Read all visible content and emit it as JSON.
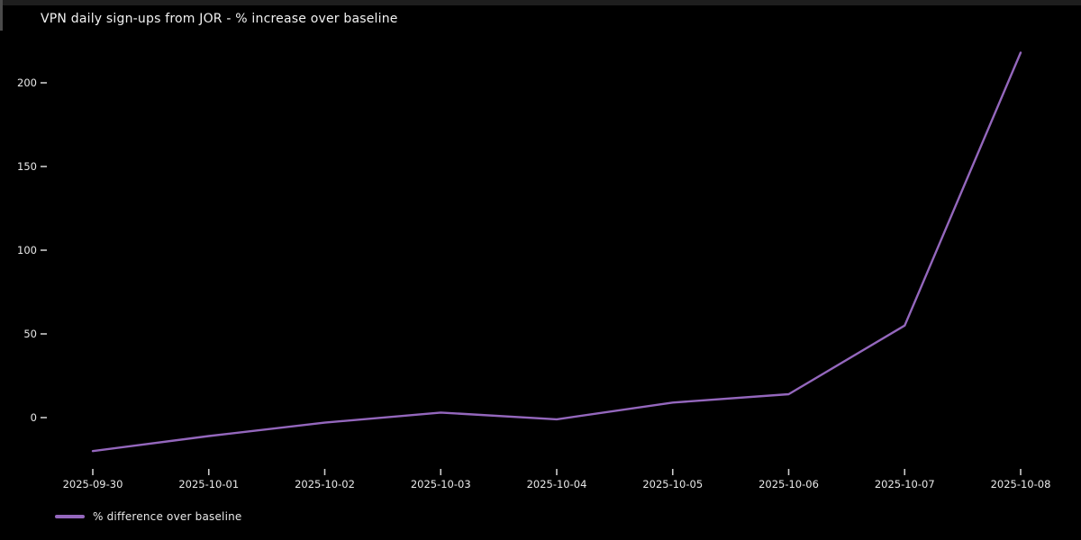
{
  "title": "VPN daily sign-ups from JOR - % increase over baseline",
  "legend": {
    "label": "% difference over baseline"
  },
  "colors": {
    "background": "#000000",
    "line": "#9467bd",
    "text": "#e9e9e9",
    "tick": "#cccccc",
    "top_strip": "#1e1e1e"
  },
  "chart_data": {
    "type": "line",
    "title": "VPN daily sign-ups from JOR - % increase over baseline",
    "x": [
      "2025-09-30",
      "2025-10-01",
      "2025-10-02",
      "2025-10-03",
      "2025-10-04",
      "2025-10-05",
      "2025-10-06",
      "2025-10-07",
      "2025-10-08"
    ],
    "series": [
      {
        "name": "% difference over baseline",
        "values": [
          -20,
          -11,
          -3,
          3,
          -1,
          9,
          14,
          55,
          218
        ]
      }
    ],
    "xlabel": "",
    "ylabel": "",
    "yticks": [
      0,
      50,
      100,
      150,
      200
    ],
    "ylim": [
      -30,
      228
    ],
    "grid": false,
    "background": "dark",
    "legend_position": "bottom-left"
  }
}
